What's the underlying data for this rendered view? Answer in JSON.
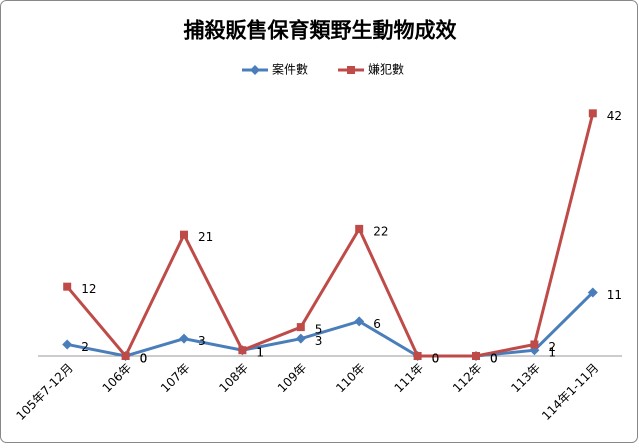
{
  "chart_data": {
    "type": "line",
    "title": "捕殺販售保育類野生動物成效",
    "categories": [
      "105年7-12月",
      "106年",
      "107年",
      "108年",
      "109年",
      "110年",
      "111年",
      "112年",
      "113年",
      "114年1-11月"
    ],
    "series": [
      {
        "name": "案件數",
        "color": "#4a7ebb",
        "marker": "diamond",
        "values": [
          2,
          0,
          3,
          1,
          3,
          6,
          0,
          0,
          1,
          11
        ]
      },
      {
        "name": "嫌犯數",
        "color": "#be4b48",
        "marker": "square",
        "values": [
          12,
          0,
          21,
          1,
          5,
          22,
          0,
          0,
          2,
          42
        ]
      }
    ],
    "ylim": [
      0,
      45
    ],
    "legend": "top"
  }
}
